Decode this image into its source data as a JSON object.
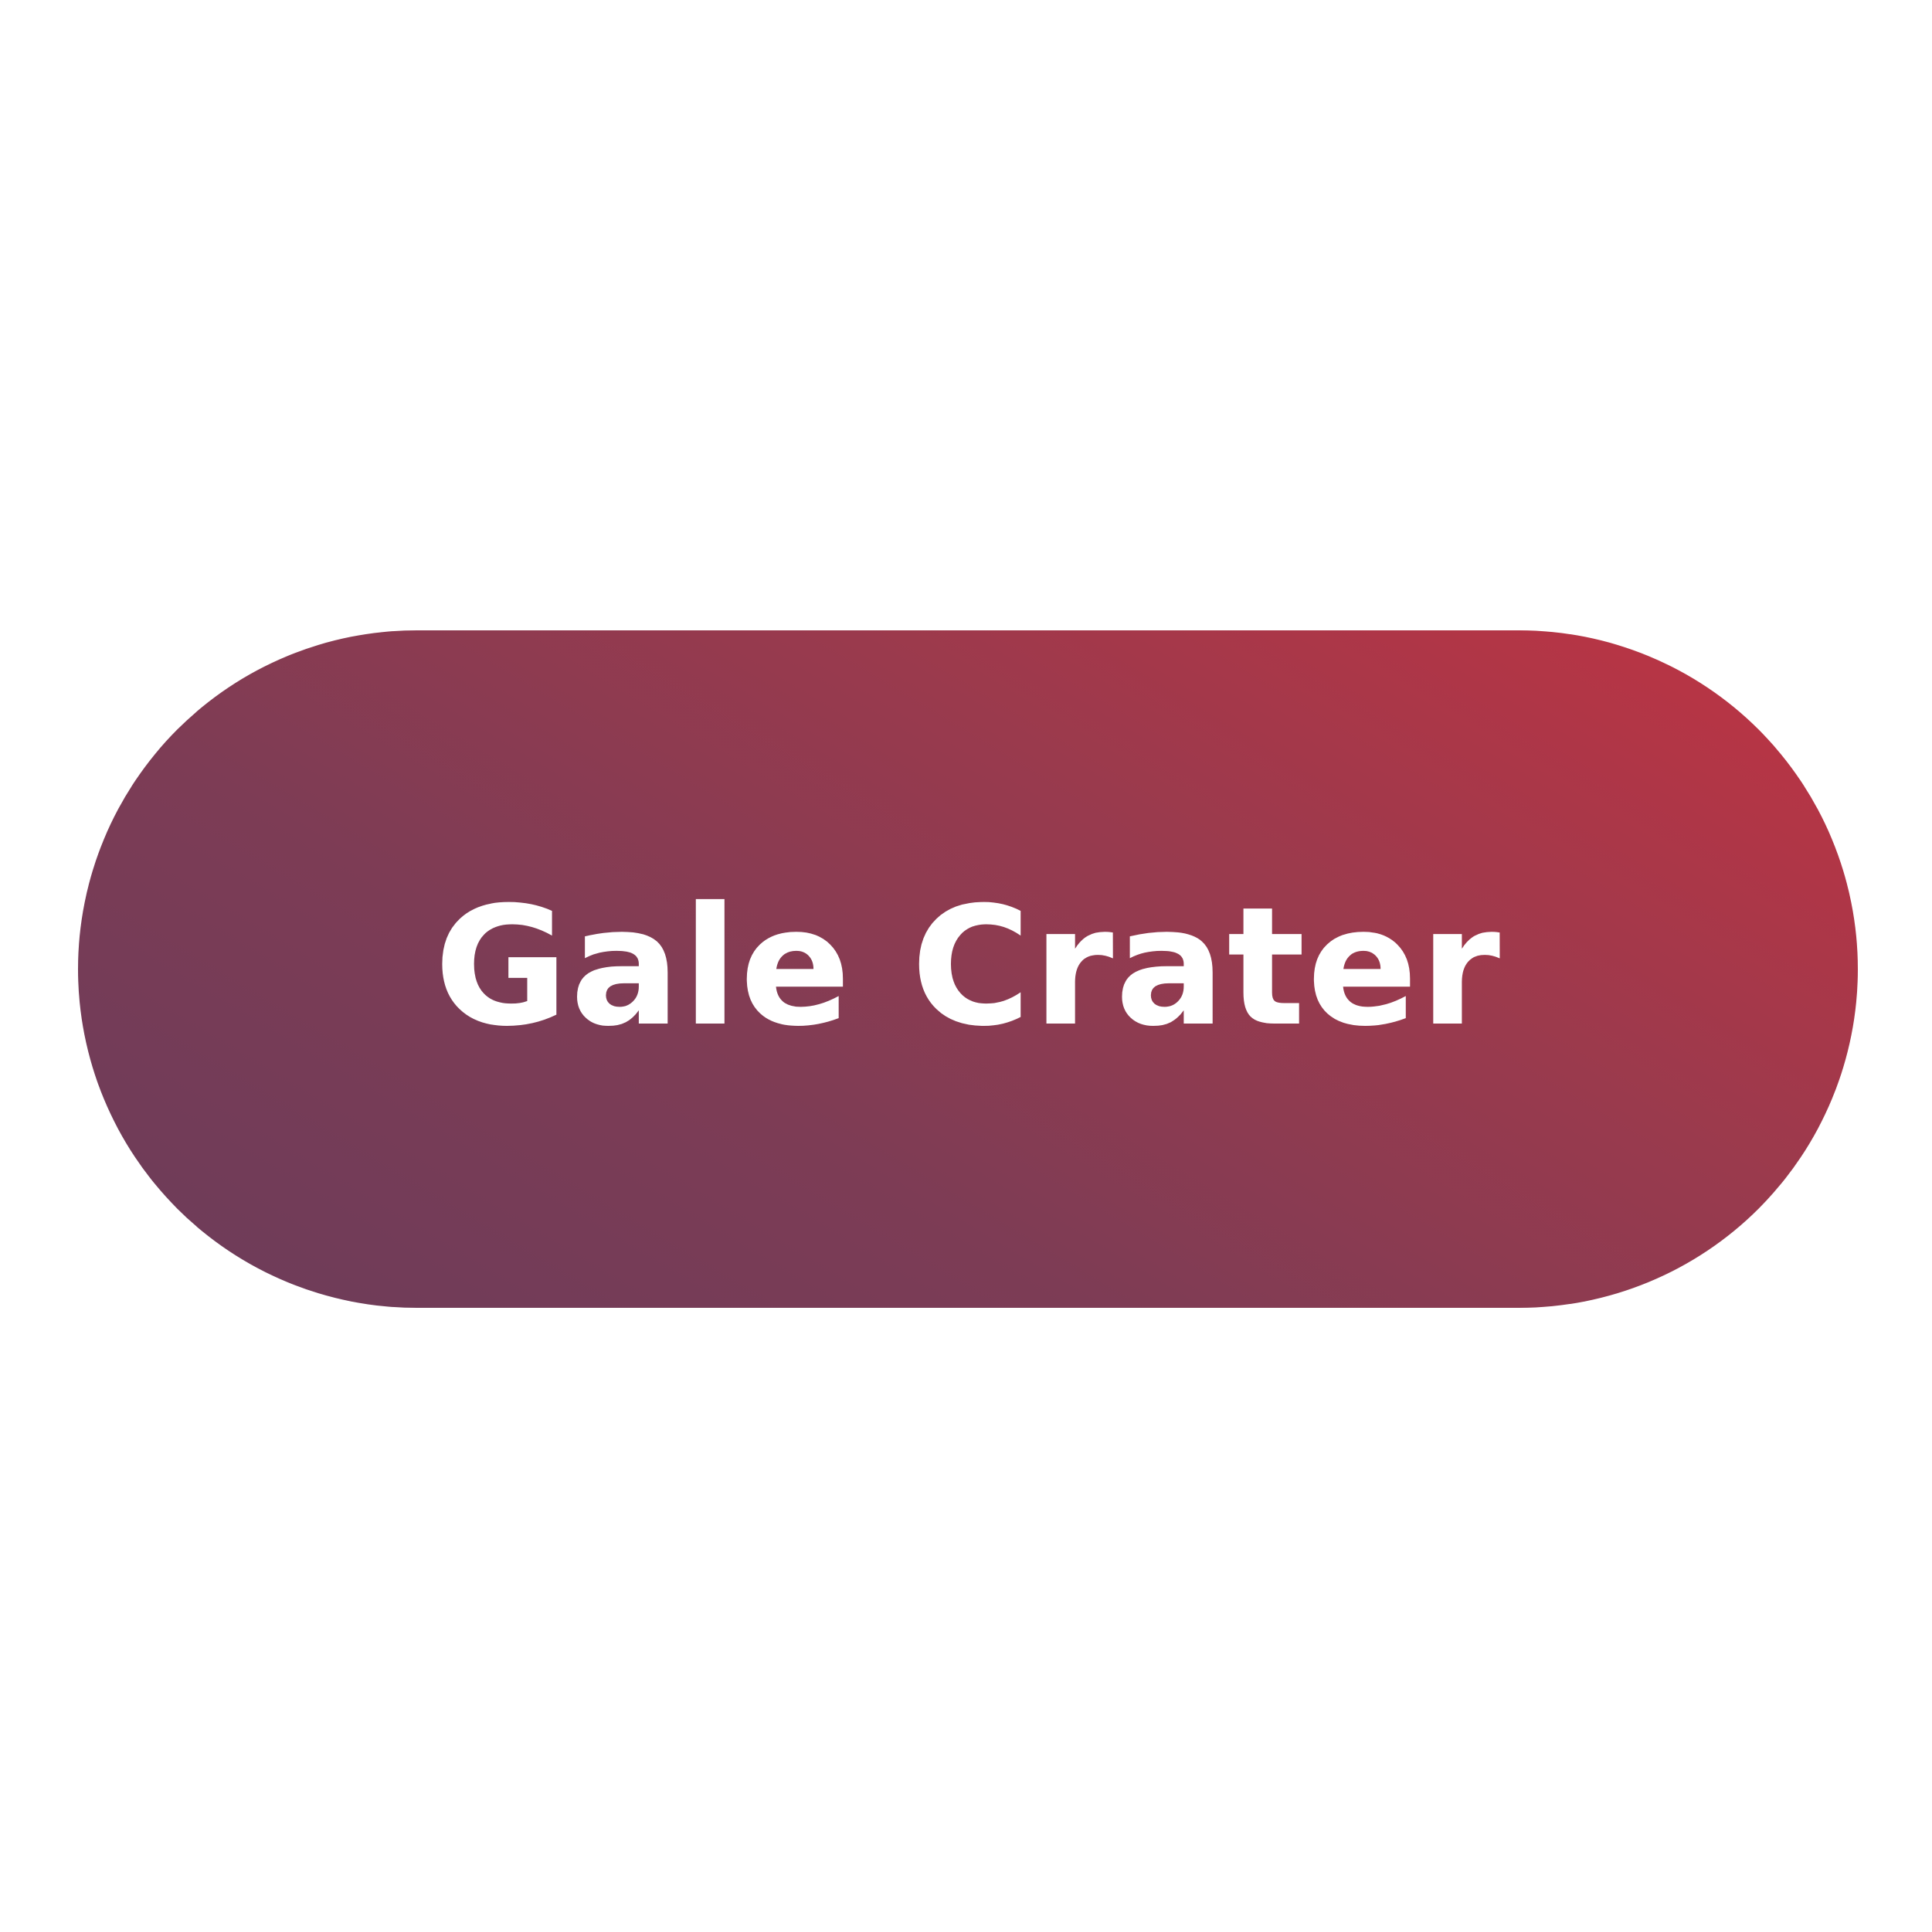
{
  "button": {
    "label": "Gale Crater"
  },
  "colors": {
    "background": "#ffffff",
    "gradient_start": "#6b3c5a",
    "gradient_end": "#c03342",
    "text": "#ffffff"
  }
}
